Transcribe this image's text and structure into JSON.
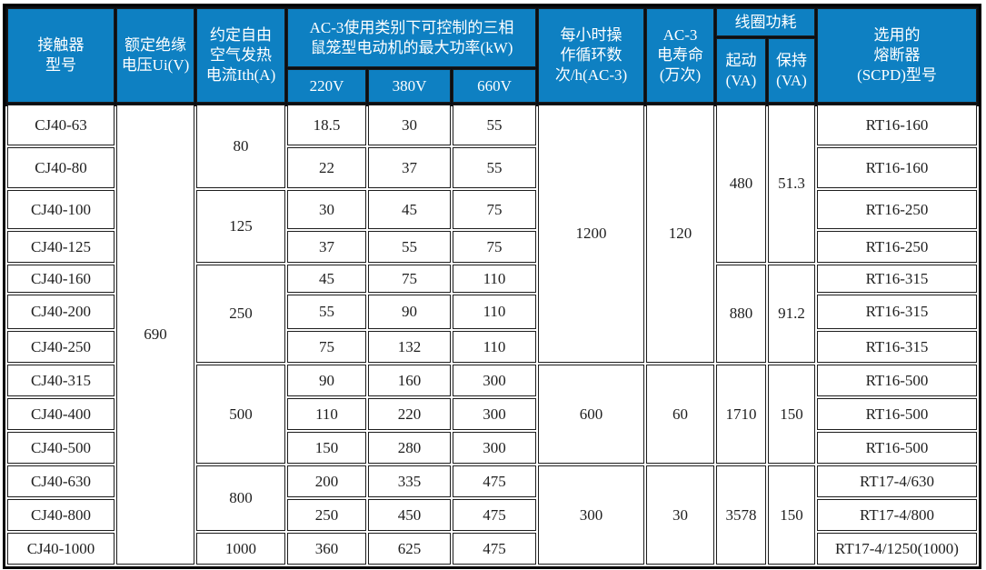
{
  "colors": {
    "header_bg": "#0e80c2",
    "header_text": "#ffffff",
    "body_text": "#1e1e1e",
    "cell_border": "#1c1c1c",
    "outer_border": "#000000"
  },
  "table": {
    "header": {
      "contactor_model": "接触器\n型号",
      "rated_insulation_voltage": "额定绝缘\n电压Ui(V)",
      "thermal_current": "约定自由\n空气发热\n电流Ith(A)",
      "ac3_max_power": "AC-3使用类别下可控制的三相\n鼠笼型电动机的最大功率(kW)",
      "v220": "220V",
      "v380": "380V",
      "v660": "660V",
      "cycles_per_hour": "每小时操\n作循环数\n次/h(AC-3)",
      "electrical_life": "AC-3\n电寿命\n(万次)",
      "coil_power": "线圈功耗",
      "coil_pickup": "起动\n(VA)",
      "coil_holding": "保持\n(VA)",
      "fuse": "选用的\n熔断器\n(SCPD)型号"
    },
    "insulation_voltage": "690",
    "rows": [
      {
        "model": "CJ40-63",
        "p220": "18.5",
        "p380": "30",
        "p660": "55",
        "fuse": "RT16-160"
      },
      {
        "model": "CJ40-80",
        "p220": "22",
        "p380": "37",
        "p660": "55",
        "fuse": "RT16-160"
      },
      {
        "model": "CJ40-100",
        "p220": "30",
        "p380": "45",
        "p660": "75",
        "fuse": "RT16-250"
      },
      {
        "model": "CJ40-125",
        "p220": "37",
        "p380": "55",
        "p660": "75",
        "fuse": "RT16-250"
      },
      {
        "model": "CJ40-160",
        "p220": "45",
        "p380": "75",
        "p660": "110",
        "fuse": "RT16-315"
      },
      {
        "model": "CJ40-200",
        "p220": "55",
        "p380": "90",
        "p660": "110",
        "fuse": "RT16-315"
      },
      {
        "model": "CJ40-250",
        "p220": "75",
        "p380": "132",
        "p660": "110",
        "fuse": "RT16-315"
      },
      {
        "model": "CJ40-315",
        "p220": "90",
        "p380": "160",
        "p660": "300",
        "fuse": "RT16-500"
      },
      {
        "model": "CJ40-400",
        "p220": "110",
        "p380": "220",
        "p660": "300",
        "fuse": "RT16-500"
      },
      {
        "model": "CJ40-500",
        "p220": "150",
        "p380": "280",
        "p660": "300",
        "fuse": "RT16-500"
      },
      {
        "model": "CJ40-630",
        "p220": "200",
        "p380": "335",
        "p660": "475",
        "fuse": "RT17-4/630"
      },
      {
        "model": "CJ40-800",
        "p220": "250",
        "p380": "450",
        "p660": "475",
        "fuse": "RT17-4/800"
      },
      {
        "model": "CJ40-1000",
        "p220": "360",
        "p380": "625",
        "p660": "475",
        "fuse": "RT17-4/1250(1000)"
      }
    ],
    "ith_groups": [
      {
        "value": "80",
        "span": 2
      },
      {
        "value": "125",
        "span": 2
      },
      {
        "value": "250",
        "span": 3
      },
      {
        "value": "500",
        "span": 3
      },
      {
        "value": "800",
        "span": 2
      },
      {
        "value": "1000",
        "span": 1
      }
    ],
    "cycle_groups": [
      {
        "cycles": "1200",
        "life": "120",
        "span": 7
      },
      {
        "cycles": "600",
        "life": "60",
        "span": 3
      },
      {
        "cycles": "300",
        "life": "30",
        "span": 3
      }
    ],
    "coil_groups": [
      {
        "start": "480",
        "hold": "51.3",
        "span": 4
      },
      {
        "start": "880",
        "hold": "91.2",
        "span": 3
      },
      {
        "start": "1710",
        "hold": "150",
        "span": 3
      },
      {
        "start": "3578",
        "hold": "150",
        "span": 3
      }
    ]
  }
}
